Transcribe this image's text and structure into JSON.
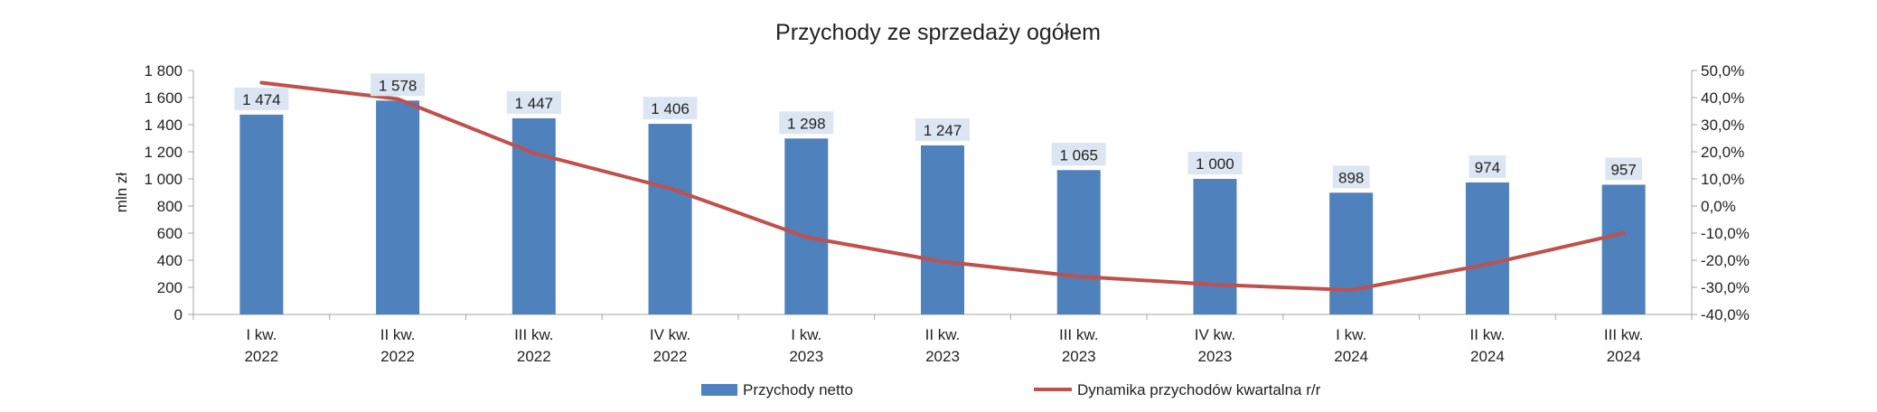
{
  "chart_data": {
    "type": "bar",
    "title": "Przychody ze sprzedaży ogółem",
    "ylabel": "mln zł",
    "y2label": "",
    "categories": [
      [
        "I kw.",
        "2022"
      ],
      [
        "II kw.",
        "2022"
      ],
      [
        "III kw.",
        "2022"
      ],
      [
        "IV kw.",
        "2022"
      ],
      [
        "I kw.",
        "2023"
      ],
      [
        "II kw.",
        "2023"
      ],
      [
        "III kw.",
        "2023"
      ],
      [
        "IV kw.",
        "2023"
      ],
      [
        "I kw.",
        "2024"
      ],
      [
        "II kw.",
        "2024"
      ],
      [
        "III kw.",
        "2024"
      ]
    ],
    "series": [
      {
        "name": "Przychody netto",
        "type": "bar",
        "axis": "left",
        "color": "#4f81bd",
        "values": [
          1474,
          1578,
          1447,
          1406,
          1298,
          1247,
          1065,
          1000,
          898,
          974,
          957
        ],
        "labels": [
          "1 474",
          "1 578",
          "1 447",
          "1 406",
          "1 298",
          "1 247",
          "1 065",
          "1 000",
          "898",
          "974",
          "957"
        ]
      },
      {
        "name": "Dynamika przychodów kwartalna r/r",
        "type": "line",
        "axis": "right",
        "color": "#c0504d",
        "values": [
          45.5,
          39.5,
          19.5,
          6.5,
          -11.5,
          -20.5,
          -26.0,
          -29.0,
          -31.0,
          -21.5,
          -10.0
        ]
      }
    ],
    "y_left": {
      "min": 0,
      "max": 1800,
      "step": 200,
      "tick_labels": [
        "0",
        "200",
        "400",
        "600",
        "800",
        "1 000",
        "1 200",
        "1 400",
        "1 600",
        "1 800"
      ]
    },
    "y_right": {
      "min": -40,
      "max": 50,
      "step": 10,
      "tick_labels": [
        "-40,0%",
        "-30,0%",
        "-20,0%",
        "-10,0%",
        "0,0%",
        "10,0%",
        "20,0%",
        "30,0%",
        "40,0%",
        "50,0%"
      ]
    },
    "grid": false,
    "legend_position": "bottom",
    "colors": {
      "bar": "#4f81bd",
      "line": "#c0504d",
      "label_bg": "#dce6f2",
      "axis": "#a6a6a6"
    }
  }
}
